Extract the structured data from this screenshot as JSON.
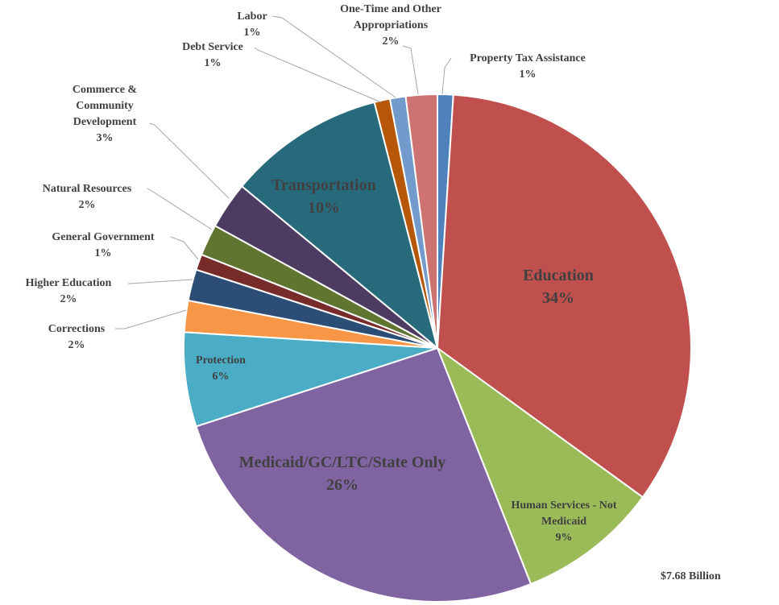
{
  "chart_data": {
    "type": "pie",
    "categories": [
      "Property Tax Assistance",
      "Education",
      "Human Services - Not Medicaid",
      "Medicaid/GC/LTC/State Only",
      "Protection",
      "Corrections",
      "Higher Education",
      "General Government",
      "Natural Resources",
      "Commerce & Community Development",
      "Transportation",
      "Debt Service",
      "Labor",
      "One-Time and Other Appropriations"
    ],
    "values": [
      1,
      34,
      9,
      26,
      6,
      2,
      2,
      1,
      2,
      3,
      10,
      1,
      1,
      2
    ],
    "value_labels": [
      "1%",
      "34%",
      "9%",
      "26%",
      "6%",
      "2%",
      "2%",
      "1%",
      "2%",
      "3%",
      "10%",
      "1%",
      "1%",
      "2%"
    ],
    "colors": [
      "#4f81bd",
      "#c0504d",
      "#9bbb59",
      "#8064a2",
      "#4bacc6",
      "#f79646",
      "#2c4d75",
      "#772c2a",
      "#5f7530",
      "#4d3b62",
      "#276a7c",
      "#b65708",
      "#729aca",
      "#cd7371"
    ],
    "annotation": "$7.68 Billion"
  }
}
